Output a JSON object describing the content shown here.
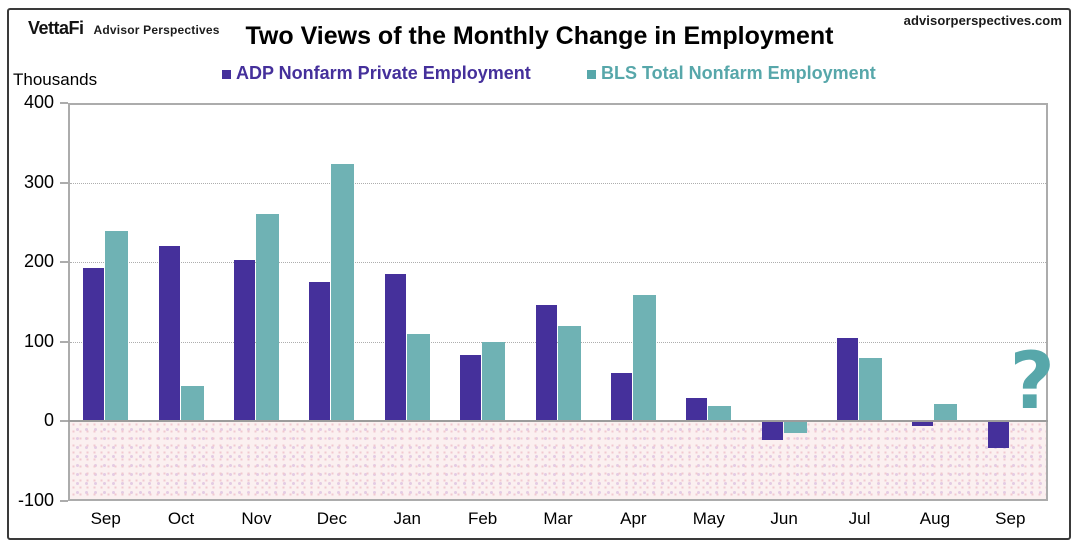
{
  "header": {
    "brand": "VettaFi",
    "brand_sub": "Advisor Perspectives",
    "website": "advisorperspectives.com"
  },
  "chart_data": {
    "type": "bar",
    "title": "Two Views of the Monthly Change in Employment",
    "ylabel": "Thousands",
    "ylim": [
      -100,
      400
    ],
    "yticks": [
      400,
      300,
      200,
      100,
      0,
      -100
    ],
    "grid": "horizontal",
    "legend_position": "top",
    "categories": [
      "Sep",
      "Oct",
      "Nov",
      "Dec",
      "Jan",
      "Feb",
      "Mar",
      "Apr",
      "May",
      "Jun",
      "Jul",
      "Aug",
      "Sep"
    ],
    "series": [
      {
        "name": "ADP Nonfarm Private Employment",
        "color": "#45309b",
        "label_color": "#45309b",
        "values": [
          192,
          220,
          203,
          175,
          185,
          83,
          146,
          60,
          29,
          -22,
          104,
          -4,
          -32
        ]
      },
      {
        "name": "BLS Total Nonfarm Employment",
        "color": "#6fb2b4",
        "label_color": "#57a7aa",
        "values": [
          239,
          44,
          261,
          323,
          110,
          100,
          120,
          158,
          19,
          -13,
          79,
          22,
          null
        ]
      }
    ],
    "missing_value_marker": "?",
    "negative_region_color": "#fbf0f0"
  }
}
